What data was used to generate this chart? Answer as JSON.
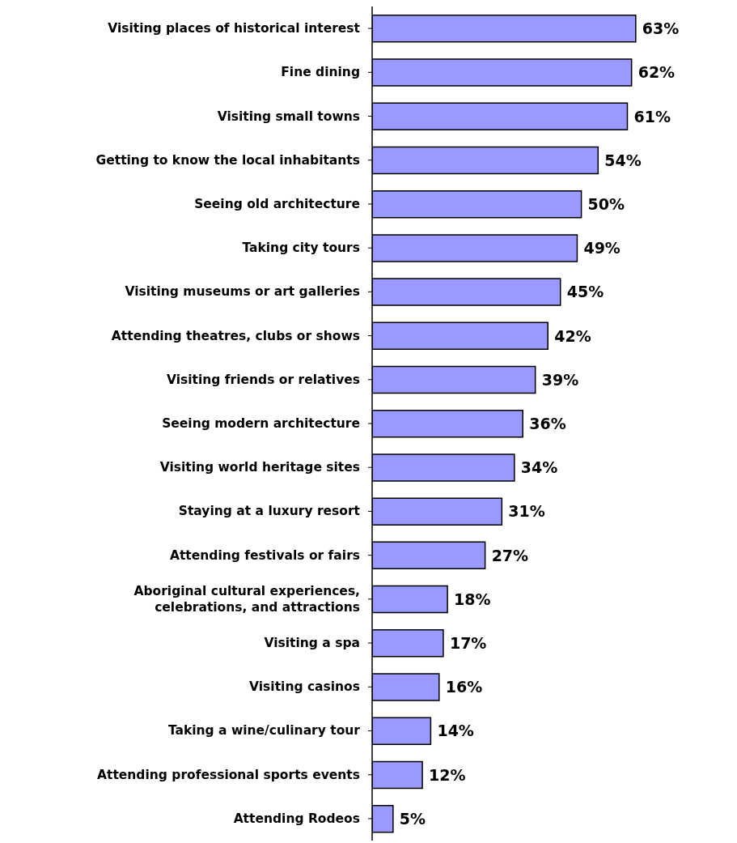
{
  "chart_data": {
    "type": "bar",
    "orientation": "horizontal",
    "categories": [
      "Visiting places of historical interest",
      "Fine dining",
      "Visiting small towns",
      "Getting to know the local inhabitants",
      "Seeing old architecture",
      "Taking city tours",
      "Visiting museums or art galleries",
      "Attending theatres, clubs or shows",
      "Visiting friends or relatives",
      "Seeing modern architecture",
      "Visiting world heritage sites",
      "Staying at a luxury resort",
      "Attending festivals or fairs",
      "Aboriginal cultural experiences, celebrations, and attractions",
      "Visiting a spa",
      "Visiting casinos",
      "Taking a wine/culinary tour",
      "Attending professional sports events",
      "Attending Rodeos"
    ],
    "values": [
      63,
      62,
      61,
      54,
      50,
      49,
      45,
      42,
      39,
      36,
      34,
      31,
      27,
      18,
      17,
      16,
      14,
      12,
      5
    ],
    "value_labels": [
      "63%",
      "62%",
      "61%",
      "54%",
      "50%",
      "49%",
      "45%",
      "42%",
      "39%",
      "36%",
      "34%",
      "31%",
      "27%",
      "18%",
      "17%",
      "16%",
      "14%",
      "12%",
      "5%"
    ],
    "color": "#9999ff"
  }
}
